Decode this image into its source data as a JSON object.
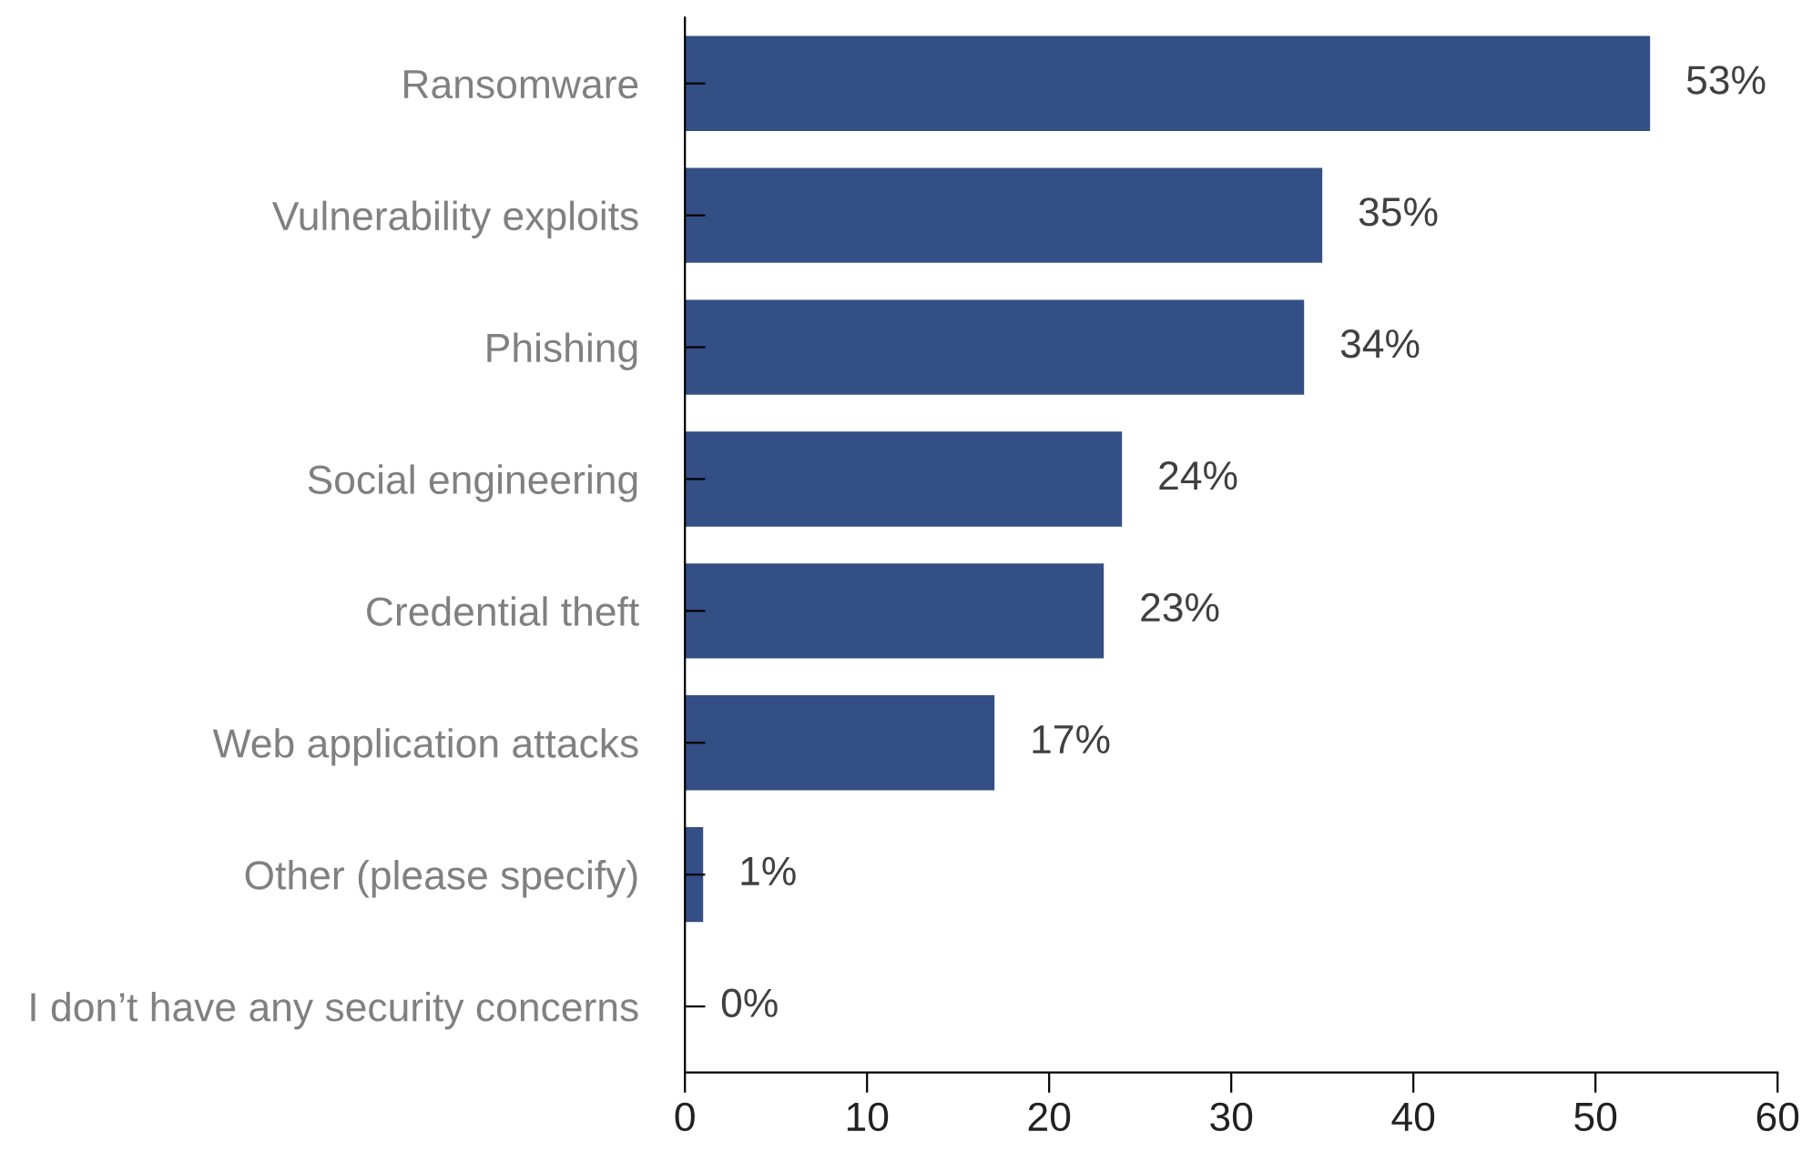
{
  "chart_data": {
    "type": "bar",
    "orientation": "horizontal",
    "categories": [
      "Ransomware",
      "Vulnerability exploits",
      "Phishing",
      "Social engineering",
      "Credential theft",
      "Web application attacks",
      "Other (please specify)",
      "I don’t have any security concerns"
    ],
    "values": [
      53,
      35,
      34,
      24,
      23,
      17,
      1,
      0
    ],
    "value_labels": [
      "53%",
      "35%",
      "34%",
      "24%",
      "23%",
      "17%",
      "1%",
      "0%"
    ],
    "color": "#344e86",
    "xlim": [
      0,
      60
    ],
    "xticks": [
      0,
      10,
      20,
      30,
      40,
      50,
      60
    ],
    "grid": false,
    "legend": false
  }
}
